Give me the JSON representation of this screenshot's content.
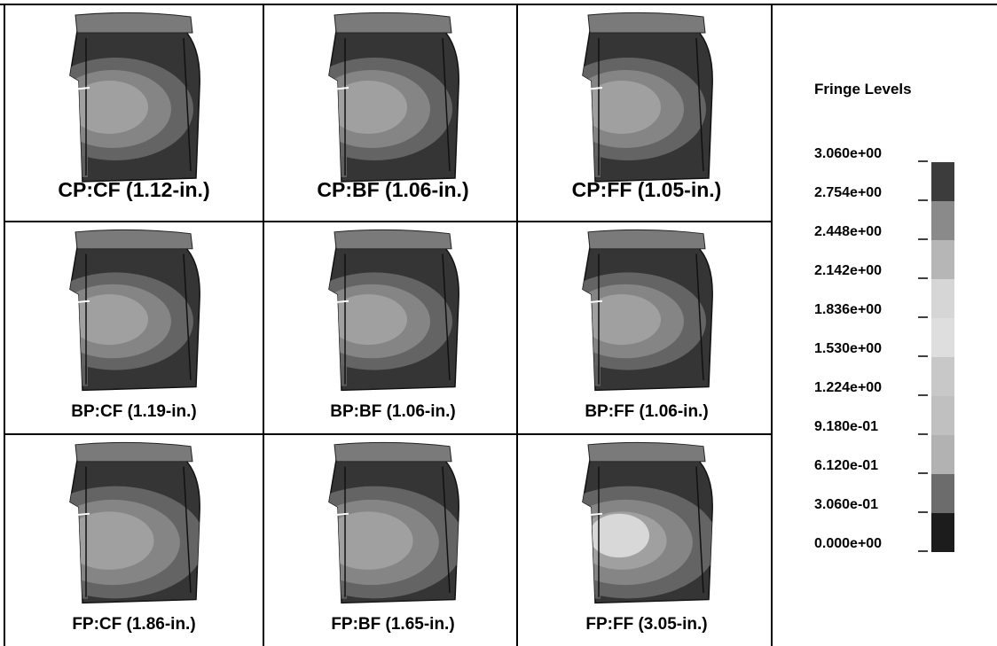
{
  "panels": [
    [
      "CP:CF (1.12-in.)",
      "CP:BF (1.06-in.)",
      "CP:FF (1.05-in.)"
    ],
    [
      "BP:CF (1.19-in.)",
      "BP:BF (1.06-in.)",
      "BP:FF (1.06-in.)"
    ],
    [
      "FP:CF (1.86-in.)",
      "FP:BF (1.65-in.)",
      "FP:FF (3.05-in.)"
    ]
  ],
  "legend": {
    "title": "Fringe Levels",
    "levels": [
      "3.060e+00",
      "2.754e+00",
      "2.448e+00",
      "2.142e+00",
      "1.836e+00",
      "1.530e+00",
      "1.224e+00",
      "9.180e-01",
      "6.120e-01",
      "3.060e-01",
      "0.000e+00"
    ]
  }
}
